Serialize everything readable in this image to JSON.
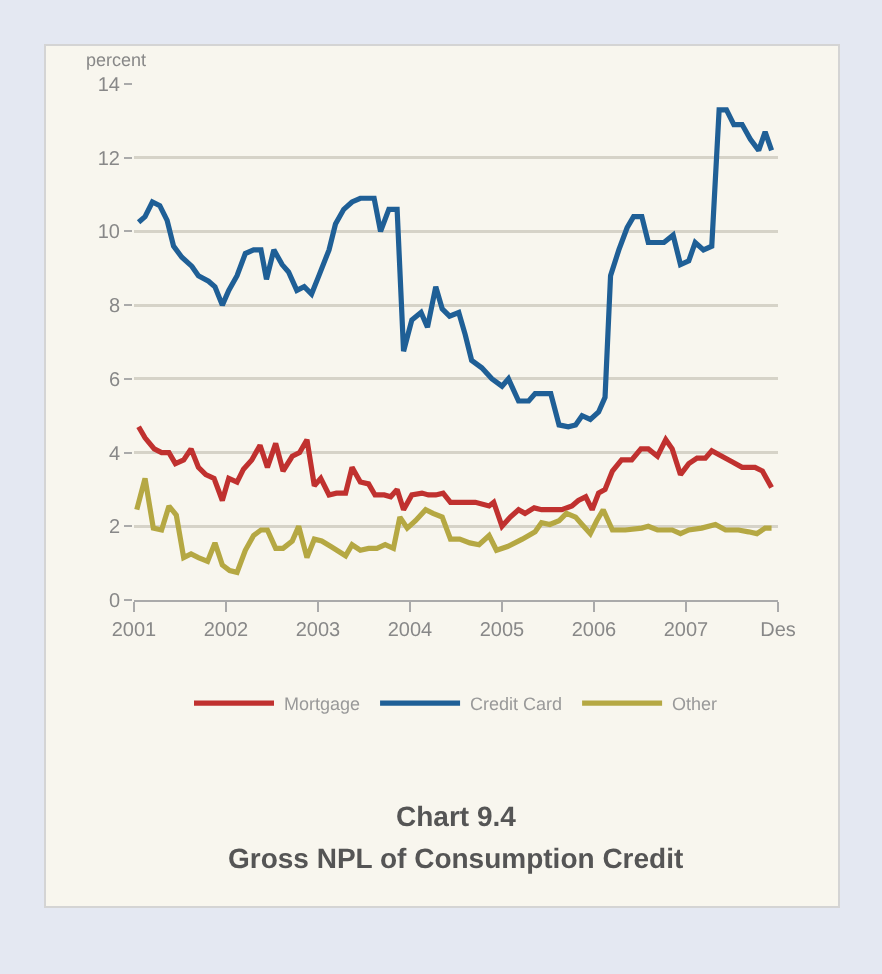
{
  "chart_data": {
    "type": "line",
    "title": "Chart 9.4",
    "subtitle": "Gross NPL of Consumption Credit",
    "ylabel": "percent",
    "xlim": [
      2001,
      2008
    ],
    "xticks": [
      2001,
      2002,
      2003,
      2004,
      2005,
      2006,
      2007,
      {
        "value": 2008,
        "label": "Des"
      }
    ],
    "ylim": [
      0,
      14
    ],
    "yticks": [
      0,
      2,
      4,
      6,
      8,
      10,
      12,
      14
    ],
    "grid": "y",
    "legend": "bottom",
    "marker": "none",
    "line_style": "solid",
    "series": [
      {
        "name": "Mortgage",
        "color": "#c0312f",
        "x": [
          2001.05,
          2001.12,
          2001.22,
          2001.3,
          2001.38,
          2001.45,
          2001.54,
          2001.62,
          2001.7,
          2001.78,
          2001.87,
          2001.96,
          2002.03,
          2002.12,
          2002.19,
          2002.28,
          2002.37,
          2002.45,
          2002.54,
          2002.62,
          2002.72,
          2002.8,
          2002.88,
          2002.96,
          2003.03,
          2003.12,
          2003.2,
          2003.3,
          2003.37,
          2003.46,
          2003.55,
          2003.62,
          2003.72,
          2003.79,
          2003.86,
          2003.93,
          2004.02,
          2004.13,
          2004.2,
          2004.28,
          2004.36,
          2004.44,
          2004.57,
          2004.71,
          2004.86,
          2004.91,
          2005.0,
          2005.09,
          2005.18,
          2005.25,
          2005.35,
          2005.43,
          2005.54,
          2005.65,
          2005.76,
          2005.83,
          2005.91,
          2005.98,
          2006.05,
          2006.12,
          2006.2,
          2006.3,
          2006.41,
          2006.51,
          2006.59,
          2006.69,
          2006.78,
          2006.85,
          2006.94,
          2007.03,
          2007.12,
          2007.21,
          2007.28,
          2007.39,
          2007.5,
          2007.61,
          2007.75,
          2007.83,
          2007.93
        ],
        "values": [
          4.7,
          4.4,
          4.1,
          4.0,
          4.0,
          3.7,
          3.8,
          4.1,
          3.6,
          3.4,
          3.3,
          2.7,
          3.3,
          3.2,
          3.55,
          3.8,
          4.2,
          3.6,
          4.25,
          3.5,
          3.9,
          4.0,
          4.35,
          3.1,
          3.3,
          2.85,
          2.9,
          2.9,
          3.6,
          3.2,
          3.15,
          2.85,
          2.85,
          2.8,
          3.0,
          2.45,
          2.85,
          2.9,
          2.85,
          2.85,
          2.9,
          2.65,
          2.65,
          2.65,
          2.55,
          2.65,
          2.0,
          2.25,
          2.45,
          2.35,
          2.5,
          2.45,
          2.45,
          2.45,
          2.55,
          2.7,
          2.8,
          2.45,
          2.9,
          3.0,
          3.5,
          3.8,
          3.8,
          4.1,
          4.1,
          3.9,
          4.35,
          4.1,
          3.4,
          3.7,
          3.85,
          3.85,
          4.05,
          3.9,
          3.75,
          3.6,
          3.6,
          3.5,
          3.05
        ]
      },
      {
        "name": "Credit Card",
        "color": "#1f5f96",
        "x": [
          2001.05,
          2001.12,
          2001.2,
          2001.28,
          2001.36,
          2001.43,
          2001.52,
          2001.63,
          2001.7,
          2001.81,
          2001.88,
          2001.96,
          2002.03,
          2002.12,
          2002.21,
          2002.3,
          2002.38,
          2002.44,
          2002.52,
          2002.61,
          2002.68,
          2002.77,
          2002.85,
          2002.93,
          2003.01,
          2003.12,
          2003.19,
          2003.28,
          2003.37,
          2003.46,
          2003.61,
          2003.68,
          2003.77,
          2003.86,
          2003.93,
          2004.02,
          2004.12,
          2004.19,
          2004.28,
          2004.35,
          2004.43,
          2004.53,
          2004.6,
          2004.67,
          2004.78,
          2004.89,
          2005.0,
          2005.07,
          2005.18,
          2005.29,
          2005.36,
          2005.53,
          2005.62,
          2005.72,
          2005.8,
          2005.87,
          2005.96,
          2006.05,
          2006.12,
          2006.18,
          2006.27,
          2006.36,
          2006.43,
          2006.52,
          2006.59,
          2006.76,
          2006.86,
          2006.94,
          2007.03,
          2007.1,
          2007.19,
          2007.28,
          2007.36,
          2007.44,
          2007.52,
          2007.61,
          2007.7,
          2007.79,
          2007.86,
          2007.93
        ],
        "values": [
          10.25,
          10.4,
          10.8,
          10.7,
          10.3,
          9.6,
          9.3,
          9.05,
          8.8,
          8.65,
          8.5,
          8.0,
          8.4,
          8.8,
          9.4,
          9.5,
          9.5,
          8.7,
          9.5,
          9.1,
          8.9,
          8.4,
          8.5,
          8.3,
          8.8,
          9.5,
          10.2,
          10.6,
          10.8,
          10.9,
          10.9,
          10.0,
          10.6,
          10.6,
          6.75,
          7.6,
          7.8,
          7.4,
          8.5,
          7.9,
          7.7,
          7.8,
          7.2,
          6.5,
          6.3,
          6.0,
          5.8,
          6.0,
          5.4,
          5.4,
          5.6,
          5.6,
          4.75,
          4.7,
          4.75,
          5.0,
          4.9,
          5.1,
          5.5,
          8.8,
          9.5,
          10.1,
          10.4,
          10.4,
          9.7,
          9.7,
          9.9,
          9.1,
          9.2,
          9.7,
          9.5,
          9.6,
          13.3,
          13.3,
          12.9,
          12.9,
          12.5,
          12.2,
          12.7,
          12.2
        ]
      },
      {
        "name": "Other",
        "color": "#b5a843",
        "x": [
          2001.03,
          2001.12,
          2001.21,
          2001.3,
          2001.38,
          2001.46,
          2001.54,
          2001.62,
          2001.7,
          2001.8,
          2001.88,
          2001.96,
          2002.04,
          2002.12,
          2002.21,
          2002.3,
          2002.38,
          2002.45,
          2002.54,
          2002.62,
          2002.72,
          2002.79,
          2002.88,
          2002.96,
          2003.04,
          2003.14,
          2003.3,
          2003.37,
          2003.46,
          2003.55,
          2003.64,
          2003.73,
          2003.82,
          2003.89,
          2003.97,
          2004.06,
          2004.17,
          2004.25,
          2004.35,
          2004.44,
          2004.54,
          2004.65,
          2004.75,
          2004.86,
          2004.94,
          2005.06,
          2005.22,
          2005.36,
          2005.43,
          2005.52,
          2005.62,
          2005.7,
          2005.8,
          2005.87,
          2005.96,
          2006.03,
          2006.1,
          2006.2,
          2006.34,
          2006.52,
          2006.59,
          2006.69,
          2006.85,
          2006.94,
          2007.03,
          2007.17,
          2007.32,
          2007.43,
          2007.57,
          2007.68,
          2007.77,
          2007.86,
          2007.93
        ],
        "values": [
          2.45,
          3.3,
          1.95,
          1.9,
          2.55,
          2.3,
          1.15,
          1.25,
          1.15,
          1.05,
          1.55,
          0.95,
          0.8,
          0.75,
          1.35,
          1.75,
          1.9,
          1.9,
          1.4,
          1.4,
          1.6,
          2.0,
          1.15,
          1.65,
          1.6,
          1.45,
          1.2,
          1.5,
          1.35,
          1.4,
          1.4,
          1.5,
          1.4,
          2.25,
          1.95,
          2.15,
          2.45,
          2.35,
          2.25,
          1.65,
          1.65,
          1.55,
          1.5,
          1.75,
          1.35,
          1.45,
          1.65,
          1.85,
          2.1,
          2.05,
          2.15,
          2.35,
          2.25,
          2.05,
          1.8,
          2.15,
          2.45,
          1.9,
          1.9,
          1.95,
          2.0,
          1.9,
          1.9,
          1.8,
          1.9,
          1.95,
          2.05,
          1.9,
          1.9,
          1.85,
          1.8,
          1.95,
          1.95
        ]
      }
    ]
  }
}
